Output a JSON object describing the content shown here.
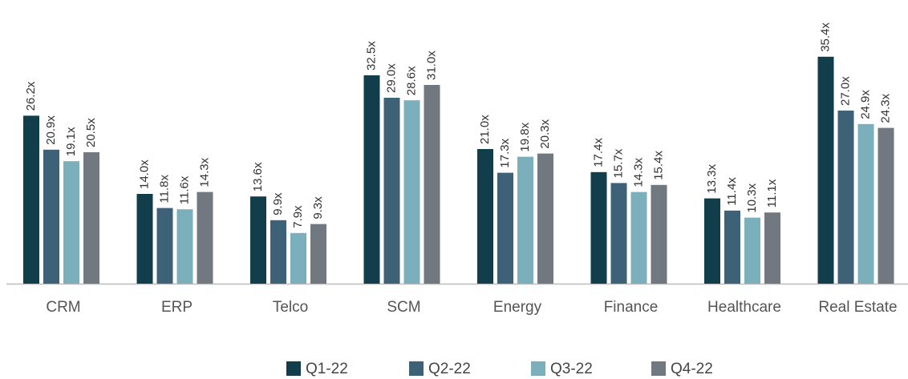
{
  "chart_data": {
    "type": "bar",
    "categories": [
      "CRM",
      "ERP",
      "Telco",
      "SCM",
      "Energy",
      "Finance",
      "Healthcare",
      "Real Estate"
    ],
    "series": [
      {
        "name": "Q1-22",
        "color": "#123d4a",
        "values": [
          26.2,
          14.0,
          13.6,
          32.5,
          21.0,
          17.4,
          13.3,
          35.4
        ],
        "value_labels": [
          "26.2x",
          "14.0x",
          "13.6x",
          "32.5x",
          "21.0x",
          "17.4x",
          "13.3x",
          "35.4x"
        ]
      },
      {
        "name": "Q2-22",
        "color": "#3d6278",
        "values": [
          20.9,
          11.8,
          9.9,
          29.0,
          17.3,
          15.7,
          11.4,
          27.0
        ],
        "value_labels": [
          "20.9x",
          "11.8x",
          "9.9x",
          "29.0x",
          "17.3x",
          "15.7x",
          "11.4x",
          "27.0x"
        ]
      },
      {
        "name": "Q3-22",
        "color": "#7aafbb",
        "values": [
          19.1,
          11.6,
          7.9,
          28.6,
          19.8,
          14.3,
          10.3,
          24.9
        ],
        "value_labels": [
          "19.1x",
          "11.6x",
          "7.9x",
          "28.6x",
          "19.8x",
          "14.3x",
          "10.3x",
          "24.9x"
        ]
      },
      {
        "name": "Q4-22",
        "color": "#72787f",
        "values": [
          20.5,
          14.3,
          9.3,
          31.0,
          20.3,
          15.4,
          11.1,
          24.3
        ],
        "value_labels": [
          "20.5x",
          "14.3x",
          "9.3x",
          "31.0x",
          "20.3x",
          "15.4x",
          "11.1x",
          "24.3x"
        ]
      }
    ],
    "legend": "bottom"
  }
}
